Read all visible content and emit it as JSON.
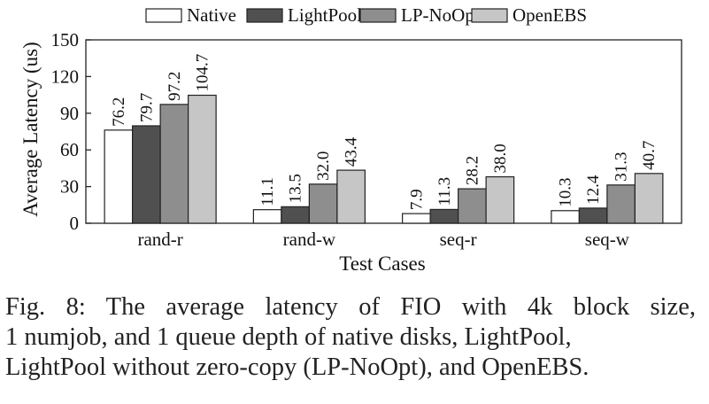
{
  "chart_data": {
    "type": "bar",
    "categories": [
      "rand-r",
      "rand-w",
      "seq-r",
      "seq-w"
    ],
    "series": [
      {
        "name": "Native",
        "values": [
          76.2,
          11.1,
          7.9,
          10.3
        ],
        "color": "#ffffff"
      },
      {
        "name": "LightPool",
        "values": [
          79.7,
          13.5,
          11.3,
          12.4
        ],
        "color": "#505050"
      },
      {
        "name": "LP-NoOpt",
        "values": [
          97.2,
          32.0,
          28.2,
          31.3
        ],
        "color": "#8e8e8e"
      },
      {
        "name": "OpenEBS",
        "values": [
          104.7,
          43.4,
          38.0,
          40.7
        ],
        "color": "#c6c6c6"
      }
    ],
    "value_labels": [
      [
        "76.2",
        "11.1",
        "7.9",
        "10.3"
      ],
      [
        "79.7",
        "13.5",
        "11.3",
        "12.4"
      ],
      [
        "97.2",
        "32.0",
        "28.2",
        "31.3"
      ],
      [
        "104.7",
        "43.4",
        "38.0",
        "40.7"
      ]
    ],
    "xlabel": "Test Cases",
    "ylabel": "Average Latency (us)",
    "ylim": [
      0,
      150
    ],
    "yticks": [
      "0",
      "30",
      "60",
      "90",
      "120",
      "150"
    ],
    "legend_position": "top",
    "grid": false
  },
  "caption": {
    "line1": "Fig. 8: The average latency of FIO with 4k block size,",
    "line2": "1 numjob, and 1 queue depth of native disks, LightPool,",
    "line3": "LightPool without zero-copy (LP-NoOpt), and OpenEBS."
  }
}
